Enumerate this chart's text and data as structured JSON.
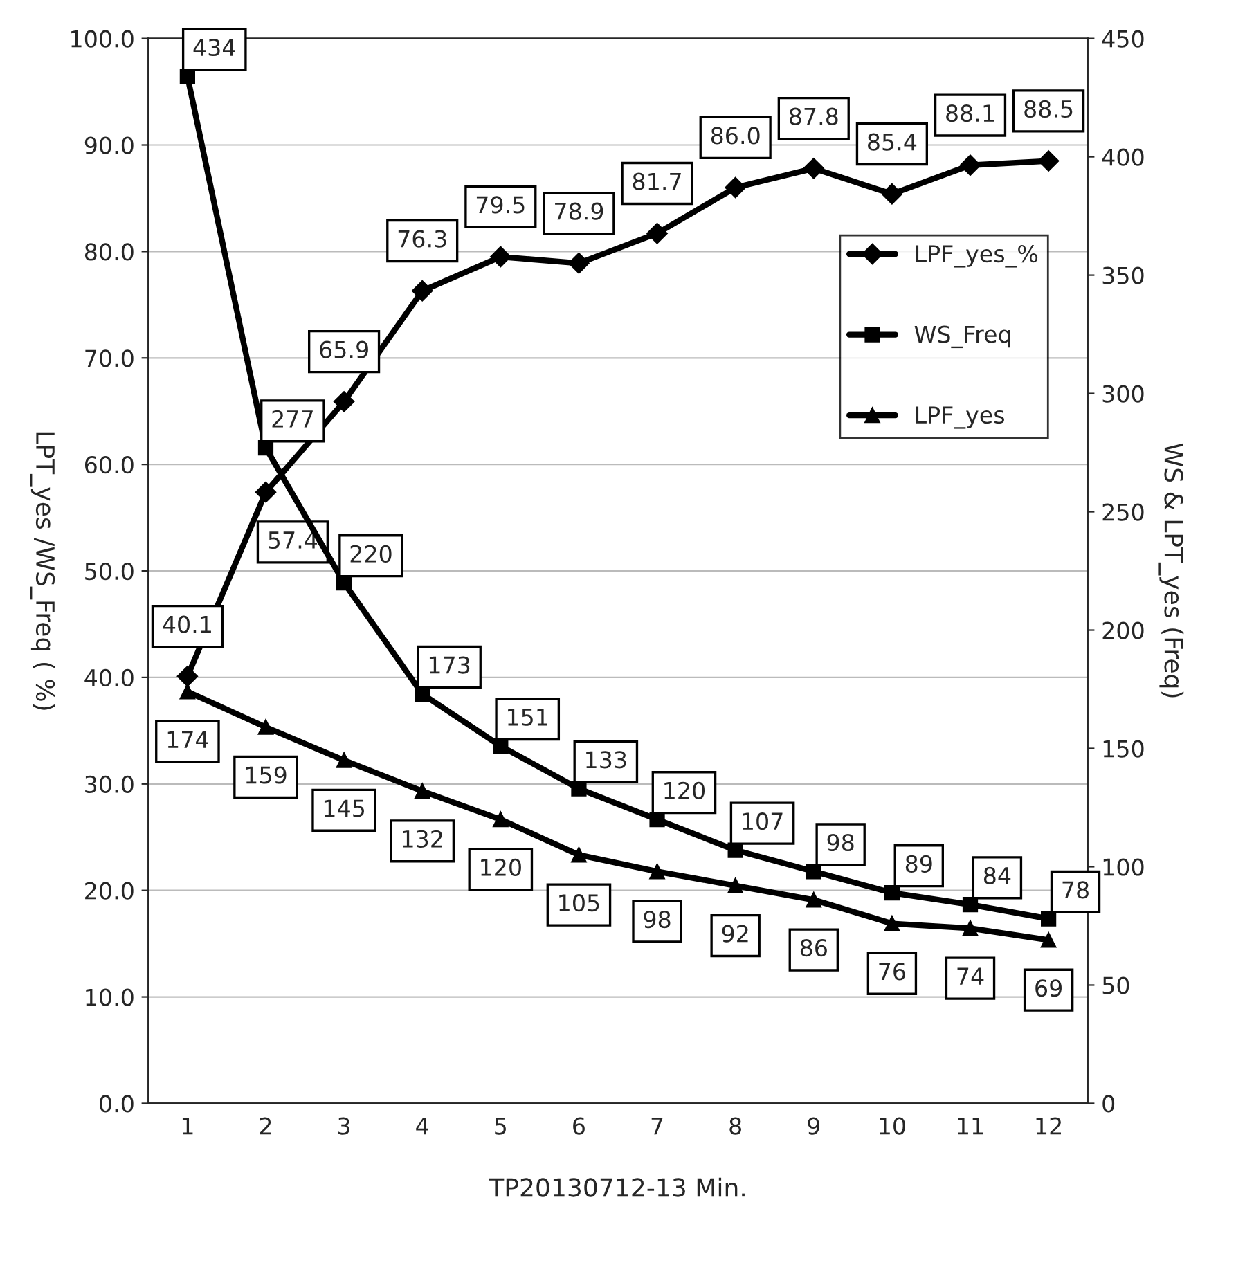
{
  "chart_data": {
    "type": "line",
    "xlabel": "TP20130712-13 Min.",
    "ylabel": "LPT_yes /WS_Freq ( %)",
    "y2label": "WS & LPT_yes (Freq)",
    "categories": [
      "1",
      "2",
      "3",
      "4",
      "5",
      "6",
      "7",
      "8",
      "9",
      "10",
      "11",
      "12"
    ],
    "series": [
      {
        "name": "LPF_yes_%",
        "color": "#000000",
        "marker": "diamond",
        "values": [
          40.1,
          57.4,
          65.9,
          76.3,
          79.5,
          78.9,
          81.7,
          86.0,
          87.8,
          85.4,
          88.1,
          88.5
        ],
        "value_labels": [
          "40.1",
          "57.4",
          "65.9",
          "76.3",
          "79.5",
          "78.9",
          "81.7",
          "86.0",
          "87.8",
          "85.4",
          "88.1",
          "88.5"
        ]
      },
      {
        "name": "WS_Freq",
        "color": "#000000",
        "marker": "square",
        "axis": "y2",
        "values": [
          434,
          277,
          220,
          173,
          151,
          133,
          120,
          107,
          98,
          89,
          84,
          78
        ],
        "value_labels": [
          "434",
          "277",
          "220",
          "173",
          "151",
          "133",
          "120",
          "107",
          "98",
          "89",
          "84",
          "78"
        ]
      },
      {
        "name": "LPF_yes",
        "color": "#000000",
        "marker": "triangle",
        "axis": "y2",
        "values": [
          174,
          159,
          145,
          132,
          120,
          105,
          98,
          92,
          86,
          76,
          74,
          69
        ],
        "value_labels": [
          "174",
          "159",
          "145",
          "132",
          "120",
          "105",
          "98",
          "92",
          "86",
          "76",
          "74",
          "69"
        ]
      }
    ],
    "ylim": [
      0,
      100
    ],
    "yticks": [
      {
        "value": 0,
        "label": "0.0"
      },
      {
        "value": 10,
        "label": "10.0"
      },
      {
        "value": 20,
        "label": "20.0"
      },
      {
        "value": 30,
        "label": "30.0"
      },
      {
        "value": 40,
        "label": "40.0"
      },
      {
        "value": 50,
        "label": "50.0"
      },
      {
        "value": 60,
        "label": "60.0"
      },
      {
        "value": 70,
        "label": "70.0"
      },
      {
        "value": 80,
        "label": "80.0"
      },
      {
        "value": 90,
        "label": "90.0"
      },
      {
        "value": 100,
        "label": "100.0"
      }
    ],
    "y2lim": [
      0,
      450
    ],
    "y2ticks": [
      0,
      50,
      100,
      150,
      200,
      250,
      300,
      350,
      400,
      450
    ],
    "grid": "y",
    "legend": "right",
    "line_style": "solid"
  }
}
